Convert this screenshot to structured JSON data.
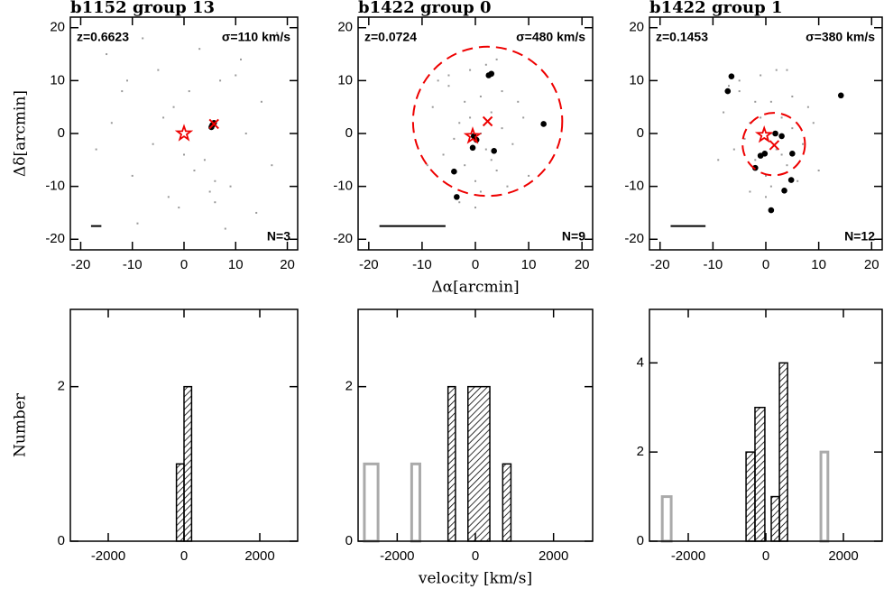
{
  "chart_data": [
    {
      "type": "scatter",
      "title": "b1152 group 13",
      "redshift_label": "z=0.6623",
      "sigma_label": "σ=110 km/s",
      "count_label": "N=3",
      "ylabel": "Δδ[arcmin]",
      "xlim": [
        -22,
        22
      ],
      "ylim": [
        -22,
        22
      ],
      "xticks": [
        -20,
        -10,
        0,
        10,
        20
      ],
      "yticks": [
        -20,
        -10,
        0,
        10,
        20
      ],
      "field_x": [
        -15,
        -12,
        -8,
        -5,
        -2,
        3,
        7,
        11,
        15,
        18,
        -17,
        -10,
        -3,
        4,
        9,
        14,
        -14,
        -6,
        1,
        6,
        12,
        17,
        -9,
        -1,
        8,
        -4,
        2,
        5,
        10,
        -11,
        0,
        6
      ],
      "field_y": [
        15,
        8,
        18,
        12,
        5,
        16,
        10,
        14,
        6,
        19,
        -3,
        -8,
        -12,
        -5,
        -10,
        -15,
        2,
        -2,
        8,
        -9,
        0,
        -6,
        -17,
        -14,
        -18,
        3,
        -7,
        -11,
        11,
        10,
        -4,
        -13
      ],
      "member_x": [
        5.3,
        5.8,
        5.5
      ],
      "member_y": [
        1.2,
        2.0,
        1.6
      ],
      "star": [
        0,
        0
      ],
      "center_mark": [
        5.8,
        1.8
      ],
      "scale_bar": {
        "x": [
          -18,
          -16
        ],
        "y": -17.5
      }
    },
    {
      "type": "scatter",
      "title": "b1422 group 0",
      "redshift_label": "z=0.0724",
      "sigma_label": "σ=480 km/s",
      "count_label": "N=9",
      "xlabel": "Δα[arcmin]",
      "xlim": [
        -22,
        22
      ],
      "ylim": [
        -22,
        22
      ],
      "xticks": [
        -20,
        -10,
        0,
        10,
        20
      ],
      "yticks": [
        -20,
        -10,
        0,
        10,
        20
      ],
      "field_x": [
        -8,
        -5,
        -3,
        -1,
        1,
        3,
        5,
        7,
        9,
        -6,
        -2,
        0,
        2,
        4,
        -4,
        6,
        -7,
        -1,
        1,
        3,
        8,
        -3,
        0,
        2,
        5,
        -9,
        10,
        -5,
        4,
        1,
        -2,
        0
      ],
      "field_y": [
        5,
        9,
        2,
        12,
        7,
        4,
        8,
        -2,
        3,
        -4,
        -6,
        -9,
        -3,
        -7,
        -1,
        -10,
        10,
        3,
        0,
        -5,
        6,
        -13,
        -14,
        13,
        1,
        -6,
        -8,
        11,
        14,
        -11,
        6,
        -1
      ],
      "member_x": [
        2.5,
        3.0,
        12.8,
        -0.5,
        3.5,
        -4.0,
        -3.5,
        -0.3,
        0.2
      ],
      "member_y": [
        11.0,
        11.3,
        1.8,
        -2.7,
        -3.3,
        -7.2,
        -12.0,
        -0.5,
        -1.2
      ],
      "star": [
        -0.5,
        -0.5
      ],
      "center_mark": [
        2.3,
        2.3
      ],
      "circle": {
        "x": 2.3,
        "y": 2.3,
        "r": 14
      },
      "scale_bar": {
        "x": [
          -18,
          -5.6
        ],
        "y": -17.5
      }
    },
    {
      "type": "scatter",
      "title": "b1422 group 1",
      "redshift_label": "z=0.1453",
      "sigma_label": "σ=380 km/s",
      "count_label": "N=12",
      "xlim": [
        -22,
        22
      ],
      "ylim": [
        -22,
        22
      ],
      "xticks": [
        -20,
        -10,
        0,
        10,
        20
      ],
      "yticks": [
        -20,
        -10,
        0,
        10,
        20
      ],
      "field_x": [
        -8,
        -5,
        -3,
        -1,
        1,
        3,
        5,
        7,
        9,
        -6,
        -2,
        0,
        2,
        4,
        -4,
        6,
        -7,
        -1,
        1,
        3,
        8,
        -3,
        0,
        2,
        5,
        -9,
        10,
        -5,
        4,
        1,
        -2,
        0
      ],
      "field_y": [
        4,
        8,
        2,
        11,
        6,
        3,
        7,
        -2,
        2,
        -3,
        -5,
        -8,
        -3,
        -6,
        -1,
        -9,
        9,
        3,
        0,
        -4,
        5,
        -11,
        -12,
        12,
        1,
        -5,
        -7,
        10,
        12,
        -10,
        6,
        -1
      ],
      "member_x": [
        -6.5,
        -7.2,
        14.2,
        1.8,
        3.0,
        -1.0,
        -0.2,
        5.0,
        -2.0,
        4.8,
        3.5,
        1.0
      ],
      "member_y": [
        10.8,
        8.0,
        7.2,
        0.0,
        -0.5,
        -4.2,
        -3.8,
        -3.8,
        -6.5,
        -8.8,
        -10.8,
        -14.5
      ],
      "star": [
        -0.3,
        -0.3
      ],
      "center_mark": [
        1.6,
        -2.2
      ],
      "circle": {
        "x": 1.5,
        "y": -2.0,
        "r": 5.9
      },
      "scale_bar": {
        "x": [
          -18,
          -11.4
        ],
        "y": -17.5
      }
    },
    {
      "type": "histogram",
      "ylabel": "Number",
      "xlim": [
        -3000,
        3000
      ],
      "ylim": [
        0,
        3
      ],
      "xticks": [
        -2000,
        0,
        2000
      ],
      "yticks": [
        0,
        2
      ],
      "bins": [
        -200,
        0,
        200
      ],
      "series": [
        {
          "color": "#000000",
          "hatch": true,
          "values": [
            1,
            2
          ]
        }
      ]
    },
    {
      "type": "histogram",
      "xlabel": "velocity [km/s]",
      "xlim": [
        -3000,
        3000
      ],
      "ylim": [
        0,
        3
      ],
      "xticks": [
        -2000,
        0,
        2000
      ],
      "yticks": [
        0,
        2
      ],
      "bins": [
        -2840,
        -2490,
        -1630,
        -1420,
        -700,
        -510,
        -190,
        370,
        700,
        910
      ],
      "series": [
        {
          "color": "#aaaaaa",
          "hatch": false,
          "values": [
            1,
            0,
            1,
            0,
            0,
            0,
            0,
            0,
            0
          ]
        },
        {
          "color": "#000000",
          "hatch": true,
          "values": [
            0,
            0,
            0,
            0,
            2,
            0,
            2,
            0,
            1
          ]
        }
      ]
    },
    {
      "type": "histogram",
      "xlim": [
        -3000,
        3000
      ],
      "ylim": [
        0,
        5.2
      ],
      "xticks": [
        -2000,
        0,
        2000
      ],
      "yticks": [
        0,
        2,
        4
      ],
      "bins": [
        -2670,
        -2440,
        -510,
        -280,
        -25,
        140,
        350,
        560,
        1420,
        1600
      ],
      "series": [
        {
          "color": "#aaaaaa",
          "hatch": false,
          "values": [
            1,
            0,
            0,
            0,
            0,
            0,
            0,
            0,
            2
          ]
        },
        {
          "color": "#000000",
          "hatch": true,
          "values": [
            0,
            0,
            2,
            3,
            0,
            1,
            4,
            0,
            0
          ]
        }
      ]
    }
  ]
}
